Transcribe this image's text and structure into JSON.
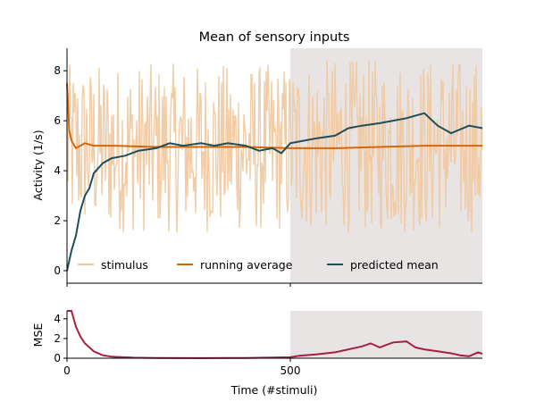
{
  "chart_data": [
    {
      "type": "line",
      "title": "Mean of sensory inputs",
      "xlabel": "",
      "ylabel": "Activity (1/s)",
      "xlim": [
        0,
        930
      ],
      "ylim": [
        -0.5,
        8.9
      ],
      "yticks": [
        0,
        2,
        4,
        6,
        8
      ],
      "xticks": [
        0,
        500
      ],
      "shaded_region": [
        500,
        930
      ],
      "legend": {
        "placement": "lower-left",
        "entries": [
          "stimulus",
          "running average",
          "predicted mean"
        ]
      },
      "series": [
        {
          "name": "stimulus",
          "color": "#F0C9A1",
          "description_points": {
            "phase_1": {
              "x_range": [
                0,
                500
              ],
              "mean": 5.0,
              "min": 1.5,
              "max": 8.3
            },
            "phase_2": {
              "x_range": [
                500,
                930
              ],
              "mean": 5.0,
              "min": 1.5,
              "max": 8.5
            }
          }
        },
        {
          "name": "running average",
          "color": "#D2690E",
          "x": [
            0,
            5,
            10,
            20,
            40,
            60,
            100,
            200,
            300,
            400,
            500,
            600,
            700,
            800,
            930
          ],
          "y": [
            7.5,
            5.6,
            5.2,
            4.9,
            5.1,
            5.0,
            5.0,
            4.95,
            4.95,
            4.95,
            4.9,
            4.9,
            4.95,
            5.0,
            5.0
          ]
        },
        {
          "name": "predicted mean",
          "color": "#1E4E5C",
          "x": [
            0,
            10,
            20,
            30,
            40,
            50,
            60,
            80,
            100,
            130,
            160,
            200,
            230,
            260,
            300,
            330,
            360,
            400,
            430,
            460,
            480,
            500,
            530,
            560,
            600,
            630,
            660,
            700,
            730,
            760,
            800,
            830,
            860,
            900,
            930
          ],
          "y": [
            0.0,
            0.8,
            1.4,
            2.4,
            3.0,
            3.3,
            3.9,
            4.3,
            4.5,
            4.6,
            4.8,
            4.9,
            5.1,
            5.0,
            5.1,
            5.0,
            5.1,
            5.0,
            4.8,
            4.9,
            4.7,
            5.1,
            5.2,
            5.3,
            5.4,
            5.7,
            5.8,
            5.9,
            6.0,
            6.1,
            6.3,
            5.8,
            5.5,
            5.8,
            5.7
          ]
        }
      ]
    },
    {
      "type": "line",
      "title": "",
      "xlabel": "Time (#stimuli)",
      "ylabel": "MSE",
      "xlim": [
        0,
        930
      ],
      "ylim": [
        0,
        4.8
      ],
      "yticks": [
        0,
        2,
        4
      ],
      "xticks": [
        0,
        500
      ],
      "shaded_region": [
        500,
        930
      ],
      "series": [
        {
          "name": "",
          "color": "#A8203F",
          "x": [
            0,
            10,
            20,
            30,
            40,
            60,
            80,
            100,
            150,
            200,
            300,
            400,
            500,
            520,
            560,
            600,
            630,
            660,
            680,
            700,
            730,
            760,
            780,
            800,
            830,
            860,
            880,
            900,
            920,
            930
          ],
          "y": [
            4.8,
            4.8,
            3.2,
            2.2,
            1.5,
            0.7,
            0.3,
            0.15,
            0.05,
            0.02,
            0.01,
            0.03,
            0.1,
            0.25,
            0.4,
            0.6,
            0.9,
            1.2,
            1.5,
            1.1,
            1.6,
            1.7,
            1.1,
            0.9,
            0.7,
            0.5,
            0.3,
            0.2,
            0.6,
            0.45
          ]
        }
      ]
    }
  ]
}
